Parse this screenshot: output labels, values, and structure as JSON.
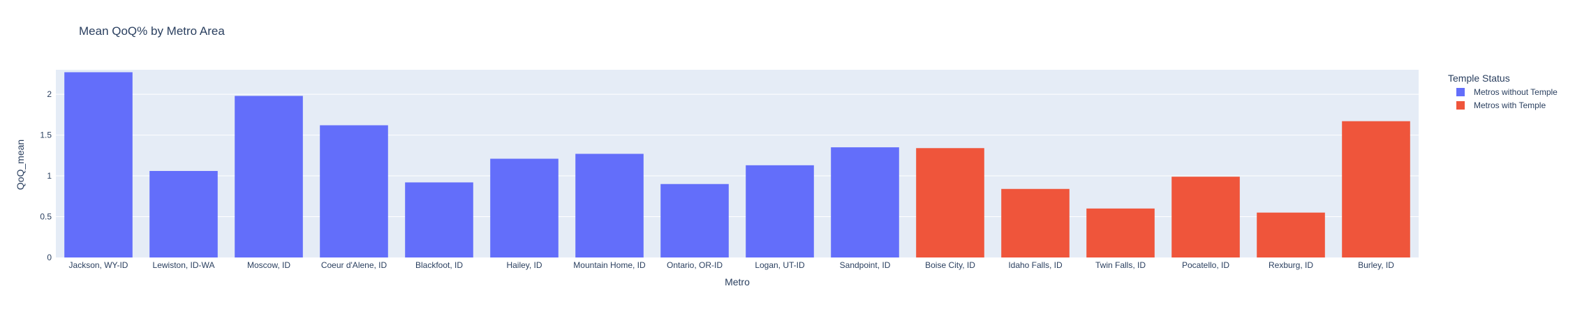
{
  "chart_data": {
    "type": "bar",
    "title": "Mean QoQ% by Metro Area",
    "xlabel": "Metro",
    "ylabel": "QoQ_mean",
    "ylim": [
      0,
      2.3
    ],
    "yticks": [
      0,
      0.5,
      1,
      1.5,
      2
    ],
    "ytick_labels": [
      "0",
      "0.5",
      "1",
      "1.5",
      "2"
    ],
    "grid": true,
    "legend_title": "Temple Status",
    "legend_position": "top-right",
    "categories": [
      "Jackson, WY-ID",
      "Lewiston, ID-WA",
      "Moscow, ID",
      "Coeur d'Alene, ID",
      "Blackfoot, ID",
      "Hailey, ID",
      "Mountain Home, ID",
      "Ontario, OR-ID",
      "Logan, UT-ID",
      "Sandpoint, ID",
      "Boise City, ID",
      "Idaho Falls, ID",
      "Twin Falls, ID",
      "Pocatello, ID",
      "Rexburg, ID",
      "Burley, ID"
    ],
    "series": [
      {
        "name": "Metros without Temple",
        "color": "#636efa",
        "values": [
          2.27,
          1.06,
          1.98,
          1.62,
          0.92,
          1.21,
          1.27,
          0.9,
          1.13,
          1.35,
          null,
          null,
          null,
          null,
          null,
          null
        ]
      },
      {
        "name": "Metros with Temple",
        "color": "#ef553b",
        "values": [
          null,
          null,
          null,
          null,
          null,
          null,
          null,
          null,
          null,
          null,
          1.34,
          0.84,
          0.6,
          0.99,
          0.55,
          1.67
        ]
      }
    ],
    "colors": {
      "plot_background": "#e5ecf6",
      "gridline": "#ffffff",
      "text": "#2a3f5f"
    }
  }
}
